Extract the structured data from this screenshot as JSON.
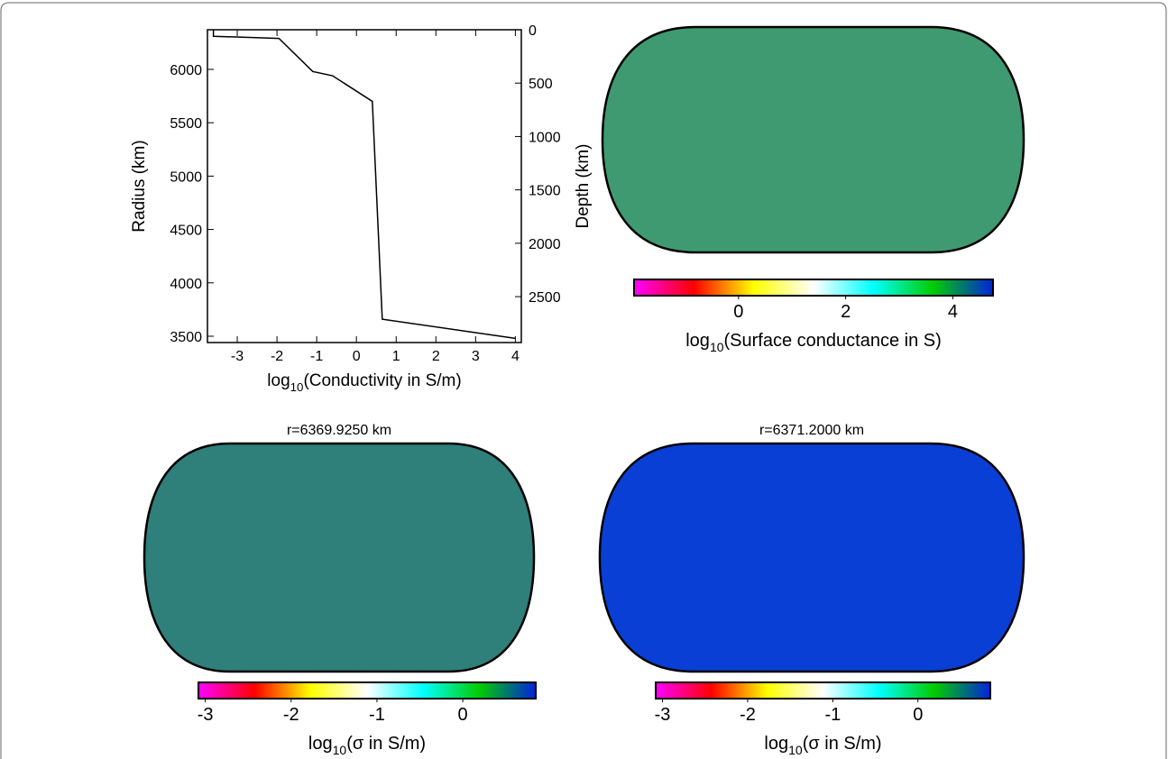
{
  "chart_data": [
    {
      "type": "line",
      "xlabel": {
        "prefix": "log",
        "subscript": "10",
        "suffix": "(Conductivity in S/m)"
      },
      "ylabel": "Radius (km)",
      "y2label": "Depth (km)",
      "x": [
        -3.6,
        -3.6,
        -1.95,
        -1.1,
        -0.6,
        0.4,
        0.65,
        4.0
      ],
      "values": [
        6371,
        6310,
        6290,
        5980,
        5940,
        5700,
        3660,
        3480
      ],
      "color": "#000000",
      "xlim": [
        -3.75,
        4.15
      ],
      "xticks": [
        -3,
        -2,
        -1,
        0,
        1,
        2,
        3,
        4
      ],
      "ylim": [
        3441,
        6371
      ],
      "yticks": [
        3500,
        4000,
        4500,
        5000,
        5500,
        6000
      ],
      "y2lim": [
        2930,
        0
      ],
      "y2ticks": [
        0,
        500,
        1000,
        1500,
        2000,
        2500
      ]
    },
    {
      "type": "map",
      "ocean_color": "#3f9a72",
      "land_color": "#ff6a13",
      "coastlines": false,
      "colormap": [
        "#ff00ff",
        "#ff0000",
        "#ffff00",
        "#ffffff",
        "#00ffff",
        "#00cc00",
        "#0022dd"
      ],
      "clim": [
        -1.95,
        4.75
      ],
      "cticks": [
        0,
        2,
        4
      ],
      "clabel": {
        "prefix": "log",
        "subscript": "10",
        "suffix": "(Surface conductance in S)"
      }
    },
    {
      "type": "map",
      "title": "r=6369.9250 km",
      "ocean_color": "#2f7f7a",
      "land_color": "#ff00ff",
      "coastlines": true,
      "colormap": [
        "#ff00ff",
        "#ff0000",
        "#ffff00",
        "#ffffff",
        "#00ffff",
        "#00cc00",
        "#0022dd"
      ],
      "clim": [
        -3.08,
        0.85
      ],
      "cticks": [
        -3,
        -2,
        -1,
        0
      ],
      "clabel": {
        "prefix": "log",
        "subscript": "10",
        "suffix": "(σ in S/m)"
      }
    },
    {
      "type": "map",
      "title": "r=6371.2000 km",
      "ocean_color": "#0a3fd6",
      "land_color": "#ffe000",
      "coastlines": true,
      "colormap": [
        "#ff00ff",
        "#ff0000",
        "#ffff00",
        "#ffffff",
        "#00ffff",
        "#00cc00",
        "#0022dd"
      ],
      "clim": [
        -3.08,
        0.85
      ],
      "cticks": [
        -3,
        -2,
        -1,
        0
      ],
      "clabel": {
        "prefix": "log",
        "subscript": "10",
        "suffix": "(σ in S/m)"
      }
    }
  ]
}
